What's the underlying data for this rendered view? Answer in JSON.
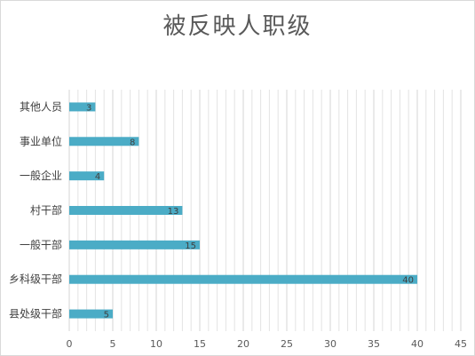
{
  "chart_data": {
    "type": "bar",
    "orientation": "horizontal",
    "title": "被反映人职级",
    "categories": [
      "其他人员",
      "事业单位",
      "一般企业",
      "村干部",
      "一般干部",
      "乡科级干部",
      "县处级干部"
    ],
    "values": [
      3,
      8,
      4,
      13,
      15,
      40,
      5
    ],
    "xlim": [
      0,
      45
    ],
    "x_ticks": [
      0,
      5,
      10,
      15,
      20,
      25,
      30,
      35,
      40,
      45
    ],
    "grid": true,
    "bar_color": "#4bacc6",
    "grid_color": "#e3e3e3",
    "data_labels": true
  }
}
